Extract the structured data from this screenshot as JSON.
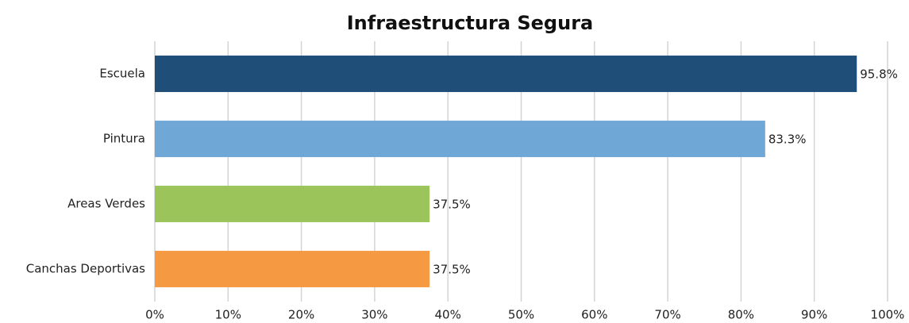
{
  "chart_data": {
    "type": "bar",
    "orientation": "horizontal",
    "title": "Infraestructura Segura",
    "categories": [
      "Escuela",
      "Pintura",
      "Areas Verdes",
      "Canchas Deportivas"
    ],
    "values": [
      95.8,
      83.3,
      37.5,
      37.5
    ],
    "value_labels": [
      "95.8%",
      "83.3%",
      "37.5%",
      "37.5%"
    ],
    "colors": [
      "#1f4e79",
      "#6fa8d6",
      "#9bc55a",
      "#f59a42"
    ],
    "xlim": [
      0,
      100
    ],
    "xticks": [
      {
        "value": 0,
        "label": "0%"
      },
      {
        "value": 10,
        "label": "10%"
      },
      {
        "value": 20,
        "label": "20%"
      },
      {
        "value": 30,
        "label": "30%"
      },
      {
        "value": 40,
        "label": "40%"
      },
      {
        "value": 50,
        "label": "50%"
      },
      {
        "value": 60,
        "label": "60%"
      },
      {
        "value": 70,
        "label": "70%"
      },
      {
        "value": 80,
        "label": "80%"
      },
      {
        "value": 90,
        "label": "90%"
      },
      {
        "value": 100,
        "label": "100%"
      }
    ],
    "grid": true
  }
}
